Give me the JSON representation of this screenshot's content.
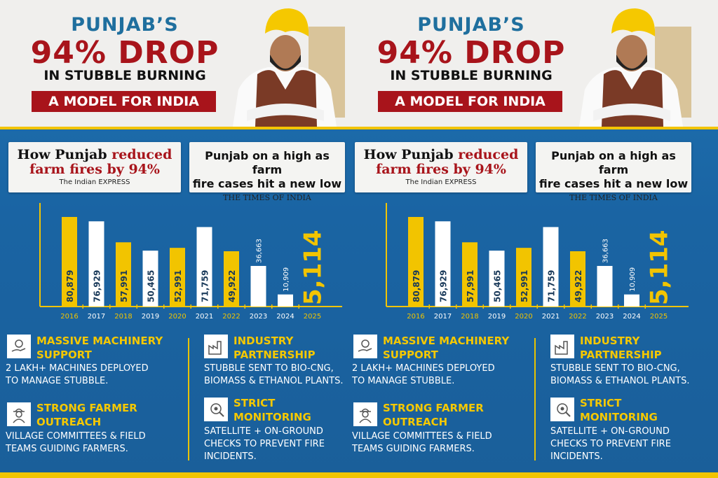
{
  "header": {
    "line1": "PUNJAB’S",
    "line2": "94% DROP",
    "line3": "IN STUBBLE BURNING",
    "banner": "A MODEL FOR INDIA"
  },
  "clippings": [
    {
      "headline_black": "How Punjab ",
      "headline_red": "reduced farm fires by 94%",
      "source": "The Indian EXPRESS"
    },
    {
      "headline_black": "Punjab on a high as farm",
      "headline_red": "fire cases hit a new low",
      "source": "THE TIMES OF INDIA"
    }
  ],
  "colors": {
    "yellow": "#f2c400",
    "blue": "#1a64a3",
    "red": "#a8141b",
    "title_blue": "#1f6f9e"
  },
  "chart_data": {
    "type": "bar",
    "categories": [
      "2016",
      "2017",
      "2018",
      "2019",
      "2020",
      "2021",
      "2022",
      "2023",
      "2024",
      "2025"
    ],
    "values": [
      80879,
      76929,
      57991,
      50465,
      52991,
      71759,
      49922,
      36663,
      10909,
      5114
    ],
    "labels": [
      "80,879",
      "76,929",
      "57,991",
      "50,465",
      "52,991",
      "71,759",
      "49,922",
      "36,663",
      "10,909",
      "5,114"
    ],
    "bar_colors": [
      "yellow",
      "white",
      "yellow",
      "white",
      "yellow",
      "white",
      "yellow",
      "white",
      "white",
      "yellow"
    ],
    "title": "",
    "xlabel": "",
    "ylabel": "",
    "grid": false
  },
  "features": [
    {
      "icon": "hand-gears-icon",
      "title1": "MASSIVE MACHINERY",
      "title2": "SUPPORT",
      "desc1": "2 LAKH+ MACHINES DEPLOYED",
      "desc2": "TO MANAGE STUBBLE.",
      "desc3": ""
    },
    {
      "icon": "farmer-icon",
      "title1": "STRONG FARMER",
      "title2": "OUTREACH",
      "desc1": "VILLAGE COMMITTEES & FIELD",
      "desc2": "TEAMS GUIDING FARMERS.",
      "desc3": ""
    },
    {
      "icon": "factory-icon",
      "title1": "INDUSTRY",
      "title2": "PARTNERSHIP",
      "desc1": "STUBBLE SENT TO BIO-CNG,",
      "desc2": "BIOMASS & ETHANOL PLANTS.",
      "desc3": ""
    },
    {
      "icon": "monitoring-eye-icon",
      "title1": "STRICT",
      "title2": "MONITORING",
      "desc1": "SATELLITE + ON-GROUND",
      "desc2": "CHECKS TO PREVENT FIRE",
      "desc3": "INCIDENTS."
    }
  ]
}
